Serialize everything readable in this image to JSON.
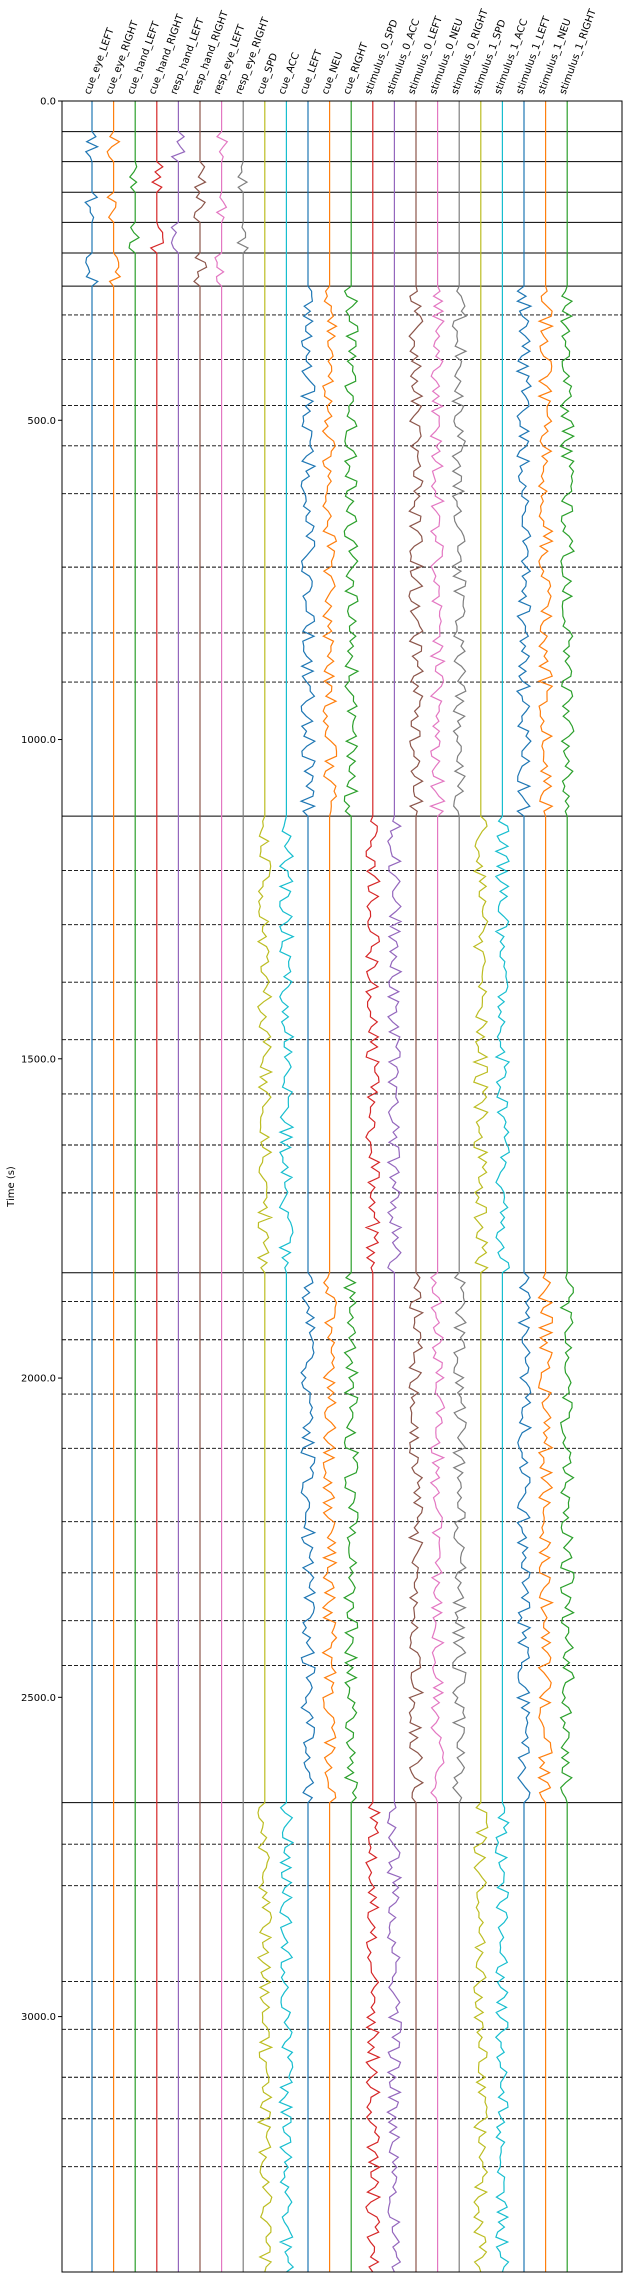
{
  "chart_data": {
    "type": "line",
    "ylabel": "Time (s)",
    "xlabel": "",
    "title": "",
    "ylim": [
      0,
      3400
    ],
    "y_inverted": true,
    "y_ticks": [
      {
        "value": 0,
        "label": "0.0"
      },
      {
        "value": 500,
        "label": "500.0"
      },
      {
        "value": 1000,
        "label": "1000.0"
      },
      {
        "value": 1500,
        "label": "1500.0"
      },
      {
        "value": 2000,
        "label": "2000.0"
      },
      {
        "value": 2500,
        "label": "2500.0"
      },
      {
        "value": 3000,
        "label": "3000.0"
      }
    ],
    "grid": false,
    "channels": [
      {
        "name": "cue_eye_LEFT",
        "color": "#1f77b4"
      },
      {
        "name": "cue_eye_RIGHT",
        "color": "#ff7f0e"
      },
      {
        "name": "cue_hand_LEFT",
        "color": "#2ca02c"
      },
      {
        "name": "cue_hand_RIGHT",
        "color": "#d62728"
      },
      {
        "name": "resp_hand_LEFT",
        "color": "#9467bd"
      },
      {
        "name": "resp_hand_RIGHT",
        "color": "#8c564b"
      },
      {
        "name": "resp_eye_LEFT",
        "color": "#e377c2"
      },
      {
        "name": "resp_eye_RIGHT",
        "color": "#7f7f7f"
      },
      {
        "name": "cue_SPD",
        "color": "#bcbd22"
      },
      {
        "name": "cue_ACC",
        "color": "#17becf"
      },
      {
        "name": "cue_LEFT",
        "color": "#1f77b4"
      },
      {
        "name": "cue_NEU",
        "color": "#ff7f0e"
      },
      {
        "name": "cue_RIGHT",
        "color": "#2ca02c"
      },
      {
        "name": "stimulus_0_SPD",
        "color": "#d62728"
      },
      {
        "name": "stimulus_0_ACC",
        "color": "#9467bd"
      },
      {
        "name": "stimulus_0_LEFT",
        "color": "#8c564b"
      },
      {
        "name": "stimulus_0_NEU",
        "color": "#e377c2"
      },
      {
        "name": "stimulus_0_RIGHT",
        "color": "#7f7f7f"
      },
      {
        "name": "stimulus_1_SPD",
        "color": "#bcbd22"
      },
      {
        "name": "stimulus_1_ACC",
        "color": "#17becf"
      },
      {
        "name": "stimulus_1_LEFT",
        "color": "#1f77b4"
      },
      {
        "name": "stimulus_1_NEU",
        "color": "#ff7f0e"
      },
      {
        "name": "stimulus_1_RIGHT",
        "color": "#2ca02c"
      }
    ],
    "solid_boundaries": [
      48,
      95,
      143,
      190,
      238,
      290,
      1120,
      1835,
      2665
    ],
    "dashed_boundaries": [
      335,
      405,
      477,
      540,
      615,
      730,
      833,
      910,
      1205,
      1290,
      1380,
      1470,
      1555,
      1635,
      1710,
      1880,
      1940,
      2025,
      2110,
      2225,
      2305,
      2380,
      2450,
      2730,
      2795,
      2945,
      3020,
      3095,
      3160,
      3235
    ],
    "event_segments": [
      {
        "start": 48,
        "end": 95,
        "channels": [
          "cue_eye_LEFT",
          "cue_eye_RIGHT",
          "resp_hand_LEFT",
          "resp_eye_LEFT"
        ]
      },
      {
        "start": 95,
        "end": 143,
        "channels": [
          "cue_hand_LEFT",
          "cue_hand_RIGHT",
          "resp_hand_RIGHT",
          "resp_eye_RIGHT"
        ]
      },
      {
        "start": 143,
        "end": 190,
        "channels": [
          "cue_eye_LEFT",
          "cue_eye_RIGHT",
          "resp_hand_RIGHT",
          "resp_eye_LEFT"
        ]
      },
      {
        "start": 190,
        "end": 238,
        "channels": [
          "cue_hand_LEFT",
          "cue_hand_RIGHT",
          "resp_hand_LEFT",
          "resp_eye_RIGHT"
        ]
      },
      {
        "start": 238,
        "end": 290,
        "channels": [
          "cue_eye_LEFT",
          "cue_eye_RIGHT",
          "resp_hand_RIGHT",
          "resp_eye_LEFT"
        ]
      },
      {
        "start": 290,
        "end": 1120,
        "channels": [
          "cue_LEFT",
          "cue_NEU",
          "cue_RIGHT",
          "stimulus_0_LEFT",
          "stimulus_0_NEU",
          "stimulus_0_RIGHT",
          "stimulus_1_LEFT",
          "stimulus_1_NEU",
          "stimulus_1_RIGHT"
        ]
      },
      {
        "start": 1120,
        "end": 1835,
        "channels": [
          "cue_SPD",
          "cue_ACC",
          "stimulus_0_SPD",
          "stimulus_0_ACC",
          "stimulus_1_SPD",
          "stimulus_1_ACC"
        ]
      },
      {
        "start": 1835,
        "end": 2665,
        "channels": [
          "cue_LEFT",
          "cue_NEU",
          "cue_RIGHT",
          "stimulus_0_LEFT",
          "stimulus_0_NEU",
          "stimulus_0_RIGHT",
          "stimulus_1_LEFT",
          "stimulus_1_NEU",
          "stimulus_1_RIGHT"
        ]
      },
      {
        "start": 2665,
        "end": 3400,
        "channels": [
          "cue_SPD",
          "cue_ACC",
          "stimulus_0_SPD",
          "stimulus_0_ACC",
          "stimulus_1_SPD",
          "stimulus_1_ACC"
        ]
      }
    ]
  }
}
